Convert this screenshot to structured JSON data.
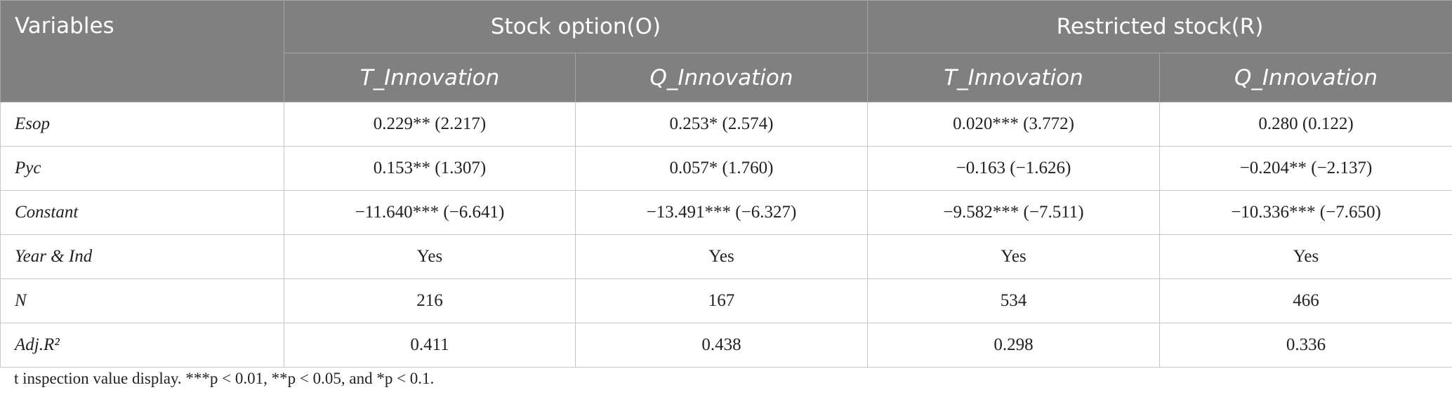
{
  "table": {
    "header": {
      "first": "Variables",
      "groups": [
        "Stock option(O)",
        "Restricted stock(R)"
      ],
      "columns": [
        "T_Innovation",
        "Q_Innovation",
        "T_Innovation",
        "Q_Innovation"
      ]
    },
    "rows": [
      [
        "Esop",
        "0.229** (2.217)",
        "0.253* (2.574)",
        "0.020*** (3.772)",
        "0.280 (0.122)"
      ],
      [
        "Pyc",
        "0.153** (1.307)",
        "0.057* (1.760)",
        "−0.163 (−1.626)",
        "−0.204** (−2.137)"
      ],
      [
        "Constant",
        "−11.640*** (−6.641)",
        "−13.491*** (−6.327)",
        "−9.582*** (−7.511)",
        "−10.336*** (−7.650)"
      ],
      [
        "Year & Ind",
        "Yes",
        "Yes",
        "Yes",
        "Yes"
      ],
      [
        "N",
        "216",
        "167",
        "534",
        "466"
      ],
      [
        "Adj.R²",
        "0.411",
        "0.438",
        "0.298",
        "0.336"
      ]
    ],
    "footnote": "t inspection value display. ***p < 0.01, **p < 0.05, and *p < 0.1."
  }
}
